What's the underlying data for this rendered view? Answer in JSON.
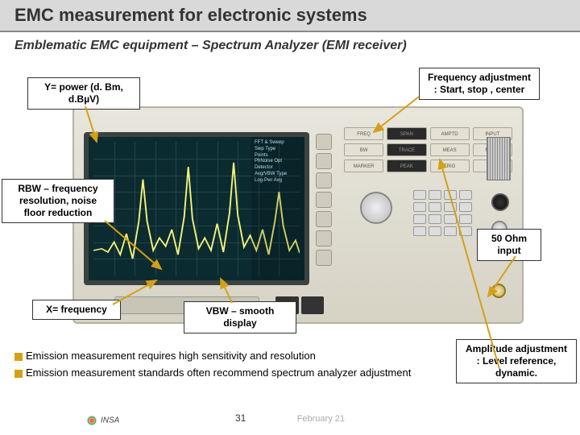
{
  "header": {
    "title": "EMC measurement for electronic systems"
  },
  "subtitle": "Emblematic EMC equipment – Spectrum Analyzer (EMI receiver)",
  "callouts": {
    "y_axis": "Y=  power (d. Bm, d.BµV)",
    "freq_adj": "Frequency adjustment : Start, stop , center",
    "rbw": "RBW – frequency resolution, noise floor reduction",
    "ohm": "50 Ohm input",
    "x_axis": "X= frequency",
    "vbw": "VBW – smooth display",
    "amp": "Amplitude adjustment : Level reference, dynamic."
  },
  "bullets": {
    "b1": "Emission measurement requires high sensitivity and resolution",
    "b2": "Emission measurement standards often recommend spectrum analyzer adjustment"
  },
  "footer": {
    "page": "31",
    "date": "February 21"
  },
  "screen": {
    "bg": "#0b2b30",
    "grid_color": "#1f4a52",
    "trace_color": "#f5f27a",
    "trace_points": [
      [
        0,
        130
      ],
      [
        8,
        128
      ],
      [
        14,
        132
      ],
      [
        20,
        120
      ],
      [
        26,
        135
      ],
      [
        32,
        110
      ],
      [
        38,
        140
      ],
      [
        44,
        95
      ],
      [
        48,
        45
      ],
      [
        52,
        95
      ],
      [
        58,
        130
      ],
      [
        64,
        115
      ],
      [
        70,
        125
      ],
      [
        76,
        105
      ],
      [
        82,
        135
      ],
      [
        88,
        90
      ],
      [
        92,
        30
      ],
      [
        96,
        92
      ],
      [
        102,
        128
      ],
      [
        108,
        115
      ],
      [
        114,
        130
      ],
      [
        120,
        98
      ],
      [
        126,
        132
      ],
      [
        132,
        85
      ],
      [
        136,
        25
      ],
      [
        140,
        88
      ],
      [
        146,
        126
      ],
      [
        152,
        112
      ],
      [
        158,
        130
      ],
      [
        164,
        105
      ],
      [
        170,
        135
      ],
      [
        176,
        95
      ],
      [
        180,
        60
      ],
      [
        184,
        100
      ],
      [
        190,
        130
      ],
      [
        196,
        118
      ],
      [
        200,
        133
      ]
    ],
    "side_labels": [
      "FFT & Sweep",
      "Swp Type",
      "Points",
      "PhNoise Opt",
      "Detector",
      "Avg/VBW Type",
      "Log-Pwr Avg"
    ]
  },
  "panel": {
    "row1": [
      "FREQ",
      "SPAN",
      "AMPTD",
      "INPUT"
    ],
    "row2": [
      "BW",
      "TRACE",
      "MEAS",
      "MODE"
    ],
    "row3": [
      "MARKER",
      "PEAK",
      "TRIG",
      "SAVE"
    ],
    "keypad_rows": 4,
    "keypad_cols": 4
  },
  "colors": {
    "callout_arrow": "#d4a017",
    "callout_border": "#333333",
    "instrument_body": "#dcd9cb",
    "bullet_sq": "#d4a017"
  }
}
